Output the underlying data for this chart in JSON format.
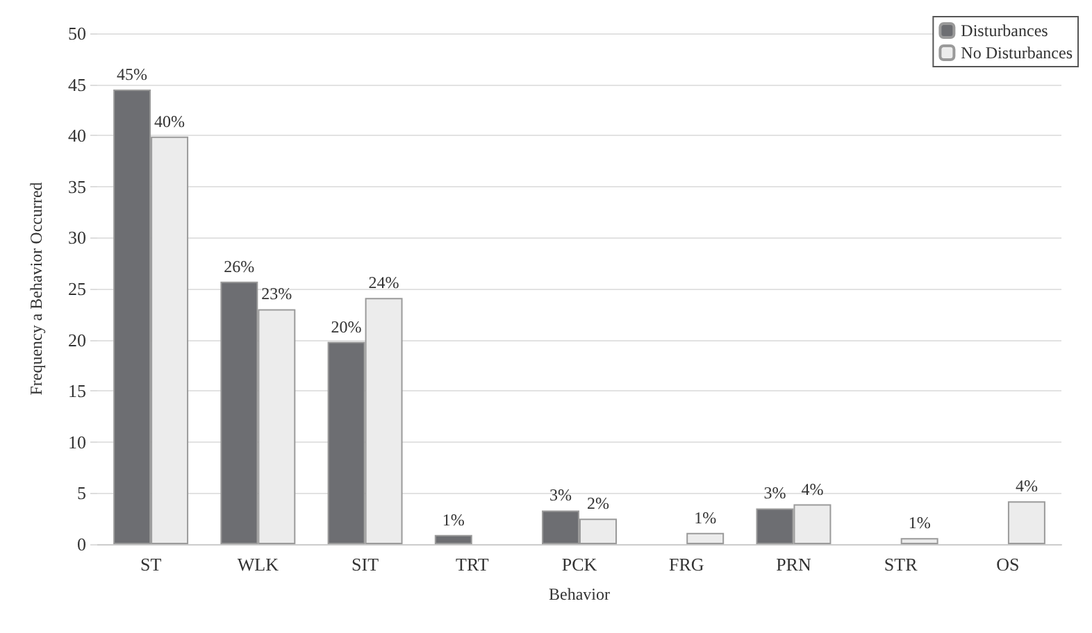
{
  "chart_data": {
    "type": "bar",
    "xlabel": "Behavior",
    "ylabel": "Frequency a Behavior Occurred",
    "categories": [
      "ST",
      "WLK",
      "SIT",
      "TRT",
      "PCK",
      "FRG",
      "PRN",
      "STR",
      "OS"
    ],
    "series": [
      {
        "name": "Disturbances",
        "color": "#6d6e72",
        "values": [
          44.5,
          25.7,
          19.8,
          0.9,
          3.3,
          null,
          3.5,
          null,
          null
        ],
        "value_labels": [
          "45%",
          "26%",
          "20%",
          "1%",
          "3%",
          null,
          "3%",
          null,
          null
        ]
      },
      {
        "name": "No Disturbances",
        "color": "#ececec",
        "values": [
          39.9,
          23.0,
          24.1,
          null,
          2.5,
          1.1,
          3.9,
          0.6,
          4.2
        ],
        "value_labels": [
          "40%",
          "23%",
          "24%",
          null,
          "2%",
          "1%",
          "4%",
          "1%",
          "4%"
        ]
      }
    ],
    "ylim": [
      0,
      50
    ],
    "yticks": [
      0,
      5,
      10,
      15,
      20,
      25,
      30,
      35,
      40,
      45,
      50
    ],
    "grid": "y",
    "legend": "top right"
  }
}
